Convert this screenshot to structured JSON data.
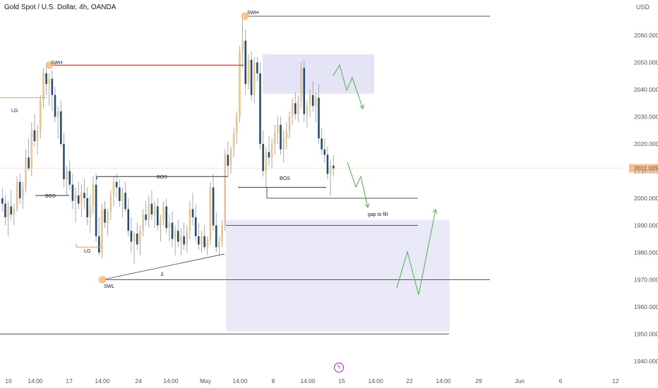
{
  "header": {
    "title": "Gold Spot / U.S. Dollar, 4h, OANDA",
    "currency": "USD"
  },
  "price_label": "2011.025",
  "lightning_icon": "lightning-icon",
  "chart_data": {
    "type": "candlestick",
    "title": "Gold Spot / U.S. Dollar, 4h, OANDA",
    "ylabel": "USD",
    "ylim": [
      1936,
      2073
    ],
    "y_ticks": [
      "2060.000",
      "2050.000",
      "2040.000",
      "2030.000",
      "2020.000",
      "2010.000",
      "2000.000",
      "1990.000",
      "1980.000",
      "1970.000",
      "1960.000",
      "1950.000",
      "1940.000"
    ],
    "x_ticks": [
      "10",
      "14:00",
      "17",
      "14:00",
      "24",
      "14:00",
      "May",
      "14:00",
      "8",
      "14:00",
      "15",
      "14:00",
      "22",
      "14:00",
      "29",
      "Jun",
      "6",
      "12"
    ],
    "last_price": 2011.025,
    "colors": {
      "up": "#e8c48f",
      "down": "#2a4d6e",
      "wick": "#8d96a3",
      "zone": "#dcdaf3",
      "projection": "#4caf50",
      "bos_red": "#e53935",
      "swing_marker": "#f7c089",
      "last_price": "#f7c089"
    },
    "annotations": {
      "swh_left": "SWH",
      "swh_top": "SWH",
      "swl": "SWL",
      "lg_upper": "LG",
      "lg_lower": "LG",
      "bos_left": "BOS",
      "bos_mid": "BOS",
      "bos_right": "BOS",
      "gap": "gap to fill",
      "trend_label": "£"
    },
    "levels": {
      "swh_top": 2067,
      "swh_left": 2049,
      "lg_upper": 2037,
      "bos_mid": 2008,
      "bos_right": 2004,
      "bos_left": 2001,
      "lg_lower": 1982,
      "swl": 1970,
      "gap_upper": 2000,
      "gap_lower": 1990,
      "bottom_line": 1950
    },
    "zones": [
      {
        "from": 2038.5,
        "to": 2053
      },
      {
        "from": 1951,
        "to": 1992
      }
    ],
    "candles": [
      [
        2000,
        2004,
        1995,
        1998
      ],
      [
        1998,
        2001,
        1990,
        1993
      ],
      [
        1993,
        1999,
        1986,
        1997
      ],
      [
        1997,
        2003,
        1992,
        1994
      ],
      [
        1994,
        1998,
        1990,
        1996
      ],
      [
        1996,
        2008,
        1995,
        2006
      ],
      [
        2006,
        2009,
        1998,
        2000
      ],
      [
        2000,
        2006,
        1996,
        2004
      ],
      [
        2004,
        2018,
        2002,
        2015
      ],
      [
        2015,
        2022,
        2010,
        2011
      ],
      [
        2011,
        2028,
        2008,
        2025
      ],
      [
        2025,
        2031,
        2019,
        2021
      ],
      [
        2021,
        2027,
        2016,
        2025
      ],
      [
        2025,
        2038,
        2022,
        2036
      ],
      [
        2036,
        2048,
        2033,
        2046
      ],
      [
        2046,
        2049,
        2038,
        2042
      ],
      [
        2042,
        2046,
        2034,
        2044
      ],
      [
        2044,
        2047,
        2032,
        2038
      ],
      [
        2038,
        2041,
        2028,
        2030
      ],
      [
        2030,
        2034,
        2022,
        2032
      ],
      [
        2032,
        2036,
        2019,
        2020
      ],
      [
        2020,
        2024,
        2004,
        2007
      ],
      [
        2007,
        2012,
        2001,
        2010
      ],
      [
        2010,
        2014,
        2003,
        2005
      ],
      [
        2005,
        2009,
        1996,
        1999
      ],
      [
        1999,
        2004,
        1991,
        2001
      ],
      [
        2001,
        2006,
        1996,
        1998
      ],
      [
        1998,
        2005,
        1993,
        2002
      ],
      [
        2002,
        2007,
        1996,
        2000
      ],
      [
        2000,
        2004,
        1990,
        1993
      ],
      [
        1993,
        2001,
        1987,
        1997
      ],
      [
        1997,
        2008,
        1994,
        2005
      ],
      [
        2005,
        2009,
        1984,
        1986
      ],
      [
        1986,
        1993,
        1979,
        1980
      ],
      [
        1980,
        1998,
        1978,
        1996
      ],
      [
        1996,
        1999,
        1989,
        1991
      ],
      [
        1991,
        1996,
        1986,
        1995
      ],
      [
        1995,
        2003,
        1992,
        2001
      ],
      [
        2001,
        2008,
        1997,
        2006
      ],
      [
        2006,
        2009,
        2000,
        2004
      ],
      [
        2004,
        2007,
        1997,
        1999
      ],
      [
        1999,
        2004,
        1993,
        2002
      ],
      [
        2002,
        2006,
        1995,
        1996
      ],
      [
        1996,
        2000,
        1986,
        1988
      ],
      [
        1988,
        1993,
        1980,
        1984
      ],
      [
        1984,
        1988,
        1976,
        1987
      ],
      [
        1987,
        1991,
        1981,
        1983
      ],
      [
        1983,
        1990,
        1979,
        1988
      ],
      [
        1988,
        1996,
        1986,
        1994
      ],
      [
        1994,
        1999,
        1990,
        1992
      ],
      [
        1992,
        2001,
        1989,
        1998
      ],
      [
        1998,
        2003,
        1992,
        1994
      ],
      [
        1994,
        1999,
        1989,
        1997
      ],
      [
        1997,
        2000,
        1988,
        1990
      ],
      [
        1990,
        1994,
        1984,
        1992
      ],
      [
        1992,
        1999,
        1990,
        1997
      ],
      [
        1997,
        2000,
        1987,
        1989
      ],
      [
        1989,
        1994,
        1984,
        1991
      ],
      [
        1991,
        1995,
        1982,
        1985
      ],
      [
        1985,
        1990,
        1979,
        1988
      ],
      [
        1988,
        1992,
        1982,
        1984
      ],
      [
        1984,
        1989,
        1979,
        1986
      ],
      [
        1986,
        1991,
        1981,
        1983
      ],
      [
        1983,
        1990,
        1980,
        1988
      ],
      [
        1988,
        1999,
        1985,
        1996
      ],
      [
        1996,
        2002,
        1990,
        1993
      ],
      [
        1993,
        1998,
        1984,
        1986
      ],
      [
        1986,
        1991,
        1981,
        1983
      ],
      [
        1983,
        1988,
        1980,
        1986
      ],
      [
        1986,
        1990,
        1981,
        1982
      ],
      [
        1982,
        1986,
        1979,
        1985
      ],
      [
        1985,
        2006,
        1983,
        2004
      ],
      [
        2004,
        2009,
        1988,
        1990
      ],
      [
        1990,
        1995,
        1980,
        1982
      ],
      [
        1982,
        1986,
        1979,
        1984
      ],
      [
        1984,
        1992,
        1982,
        1990
      ],
      [
        1990,
        2018,
        1988,
        2016
      ],
      [
        2016,
        2021,
        2008,
        2012
      ],
      [
        2012,
        2019,
        2009,
        2018
      ],
      [
        2018,
        2026,
        2015,
        2024
      ],
      [
        2024,
        2032,
        2020,
        2030
      ],
      [
        2030,
        2056,
        2028,
        2054
      ],
      [
        2054,
        2067,
        2048,
        2058
      ],
      [
        2058,
        2062,
        2038,
        2042
      ],
      [
        2042,
        2053,
        2040,
        2051
      ],
      [
        2051,
        2054,
        2036,
        2038
      ],
      [
        2038,
        2052,
        2035,
        2050
      ],
      [
        2050,
        2052,
        2043,
        2046
      ],
      [
        2046,
        2050,
        2018,
        2020
      ],
      [
        2020,
        2025,
        2008,
        2010
      ],
      [
        2010,
        2019,
        2004,
        2017
      ],
      [
        2017,
        2023,
        2012,
        2015
      ],
      [
        2015,
        2022,
        2011,
        2020
      ],
      [
        2020,
        2027,
        2016,
        2024
      ],
      [
        2024,
        2030,
        2020,
        2027
      ],
      [
        2027,
        2030,
        2016,
        2018
      ],
      [
        2018,
        2025,
        2013,
        2022
      ],
      [
        2022,
        2028,
        2018,
        2025
      ],
      [
        2025,
        2032,
        2022,
        2030
      ],
      [
        2030,
        2037,
        2027,
        2035
      ],
      [
        2035,
        2039,
        2029,
        2031
      ],
      [
        2031,
        2038,
        2028,
        2036
      ],
      [
        2036,
        2050,
        2033,
        2048
      ],
      [
        2048,
        2051,
        2028,
        2031
      ],
      [
        2031,
        2036,
        2026,
        2034
      ],
      [
        2034,
        2040,
        2030,
        2038
      ],
      [
        2038,
        2043,
        2032,
        2034
      ],
      [
        2034,
        2039,
        2028,
        2037
      ],
      [
        2037,
        2042,
        2020,
        2022
      ],
      [
        2022,
        2026,
        2016,
        2018
      ],
      [
        2018,
        2022,
        2013,
        2016
      ],
      [
        2016,
        2019,
        2007,
        2009
      ],
      [
        2009,
        2014,
        2001,
        2012
      ],
      [
        2012,
        2016,
        2008,
        2011
      ]
    ]
  }
}
